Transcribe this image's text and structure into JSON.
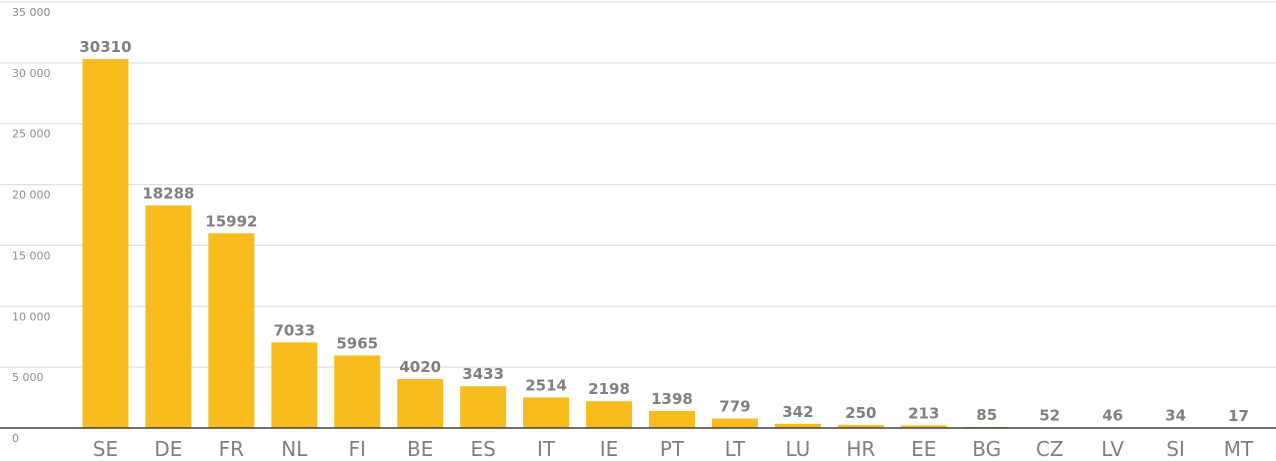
{
  "chart_data": {
    "type": "bar",
    "categories": [
      "SE",
      "DE",
      "FR",
      "NL",
      "FI",
      "BE",
      "ES",
      "IT",
      "IE",
      "PT",
      "LT",
      "LU",
      "HR",
      "EE",
      "BG",
      "CZ",
      "LV",
      "SI",
      "MT"
    ],
    "values": [
      30310,
      18288,
      15992,
      7033,
      5965,
      4020,
      3433,
      2514,
      2198,
      1398,
      779,
      342,
      250,
      213,
      85,
      52,
      46,
      34,
      17
    ],
    "data_labels": [
      "30310",
      "18288",
      "15992",
      "7033",
      "5965",
      "4020",
      "3433",
      "2514",
      "2198",
      "1398",
      "779",
      "342",
      "250",
      "213",
      "85",
      "52",
      "46",
      "34",
      "17"
    ],
    "y_ticks": [
      0,
      5000,
      10000,
      15000,
      20000,
      25000,
      30000,
      35000
    ],
    "y_tick_labels": [
      "0",
      "5 000",
      "10 000",
      "15 000",
      "20 000",
      "25 000",
      "30 000",
      "35 000"
    ],
    "ylim": [
      0,
      35000
    ],
    "title": "",
    "xlabel": "",
    "ylabel": "",
    "grid": true,
    "legend": "none",
    "bar_color": "#F9BC1E",
    "grid_color": "#d9d9d9"
  }
}
